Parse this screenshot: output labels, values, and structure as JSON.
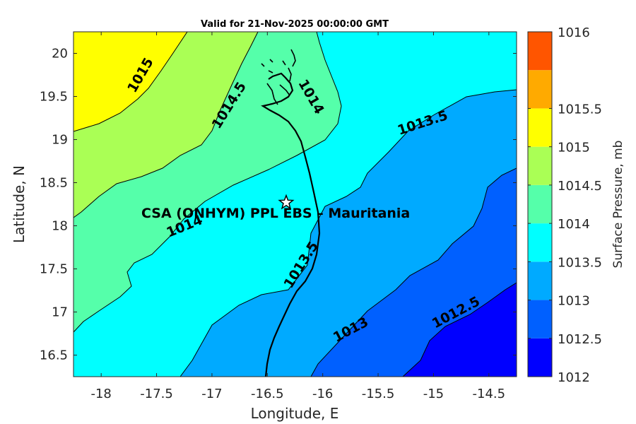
{
  "title": "Valid for 21-Nov-2025 00:00:00 GMT",
  "x_axis": {
    "label": "Longitude, E",
    "range": [
      -18.25,
      -14.25
    ],
    "ticks": [
      {
        "value": -18,
        "label": "-18"
      },
      {
        "value": -17.5,
        "label": "-17.5"
      },
      {
        "value": -17,
        "label": "-17"
      },
      {
        "value": -16.5,
        "label": "-16.5"
      },
      {
        "value": -16,
        "label": "-16"
      },
      {
        "value": -15.5,
        "label": "-15.5"
      },
      {
        "value": -15,
        "label": "-15"
      },
      {
        "value": -14.5,
        "label": "-14.5"
      }
    ]
  },
  "y_axis": {
    "label": "Latitude, N",
    "range": [
      16.25,
      20.25
    ],
    "ticks": [
      {
        "value": 16.5,
        "label": "16.5"
      },
      {
        "value": 17,
        "label": "17"
      },
      {
        "value": 17.5,
        "label": "17.5"
      },
      {
        "value": 18,
        "label": "18"
      },
      {
        "value": 18.5,
        "label": "18.5"
      },
      {
        "value": 19,
        "label": "19"
      },
      {
        "value": 19.5,
        "label": "19.5"
      },
      {
        "value": 20,
        "label": "20"
      }
    ]
  },
  "station": {
    "name": "CSA (ONHYM) PPL EBS  – Mauritania",
    "lon": -16.33,
    "lat": 18.27
  },
  "contour_labels": [
    {
      "text": "1015",
      "lon": -17.65,
      "lat": 19.75,
      "angle": -60
    },
    {
      "text": "1014.5",
      "lon": -16.85,
      "lat": 19.4,
      "angle": -58
    },
    {
      "text": "1014",
      "lon": -16.1,
      "lat": 19.5,
      "angle": 60
    },
    {
      "text": "1013.5",
      "lon": -15.1,
      "lat": 19.2,
      "angle": -18
    },
    {
      "text": "1014",
      "lon": -17.25,
      "lat": 18.0,
      "angle": -22
    },
    {
      "text": "1013.5",
      "lon": -16.2,
      "lat": 17.55,
      "angle": -58
    },
    {
      "text": "1013",
      "lon": -15.75,
      "lat": 16.8,
      "angle": -28
    },
    {
      "text": "1012.5",
      "lon": -14.8,
      "lat": 17.0,
      "angle": -28
    }
  ],
  "colorbar": {
    "title": "Surface Pressure, mb",
    "range": [
      1012,
      1016
    ],
    "bands": [
      {
        "min": 1012,
        "max": 1012.5,
        "color": "#0000ff"
      },
      {
        "min": 1012.5,
        "max": 1013,
        "color": "#0060ff"
      },
      {
        "min": 1013,
        "max": 1013.5,
        "color": "#00aaff"
      },
      {
        "min": 1013.5,
        "max": 1014,
        "color": "#00ffff"
      },
      {
        "min": 1014,
        "max": 1014.5,
        "color": "#55ffaa"
      },
      {
        "min": 1014.5,
        "max": 1015,
        "color": "#aaff55"
      },
      {
        "min": 1015,
        "max": 1015.5,
        "color": "#ffff00"
      },
      {
        "min": 1015.5,
        "max": 1016,
        "color": "#ffaa00"
      },
      {
        "min": 1016,
        "max": 1016.5,
        "color": "#ff5500"
      }
    ],
    "tick_labels": [
      "1012",
      "1012.5",
      "1013",
      "1013.5",
      "1014",
      "1014.5",
      "1015",
      "1015.5",
      "1016"
    ]
  },
  "chart_data": {
    "type": "contour",
    "variable": "Surface Pressure, mb",
    "contour_levels": [
      1012,
      1012.5,
      1013,
      1013.5,
      1014,
      1014.5,
      1015,
      1015.5,
      1016
    ]
  }
}
